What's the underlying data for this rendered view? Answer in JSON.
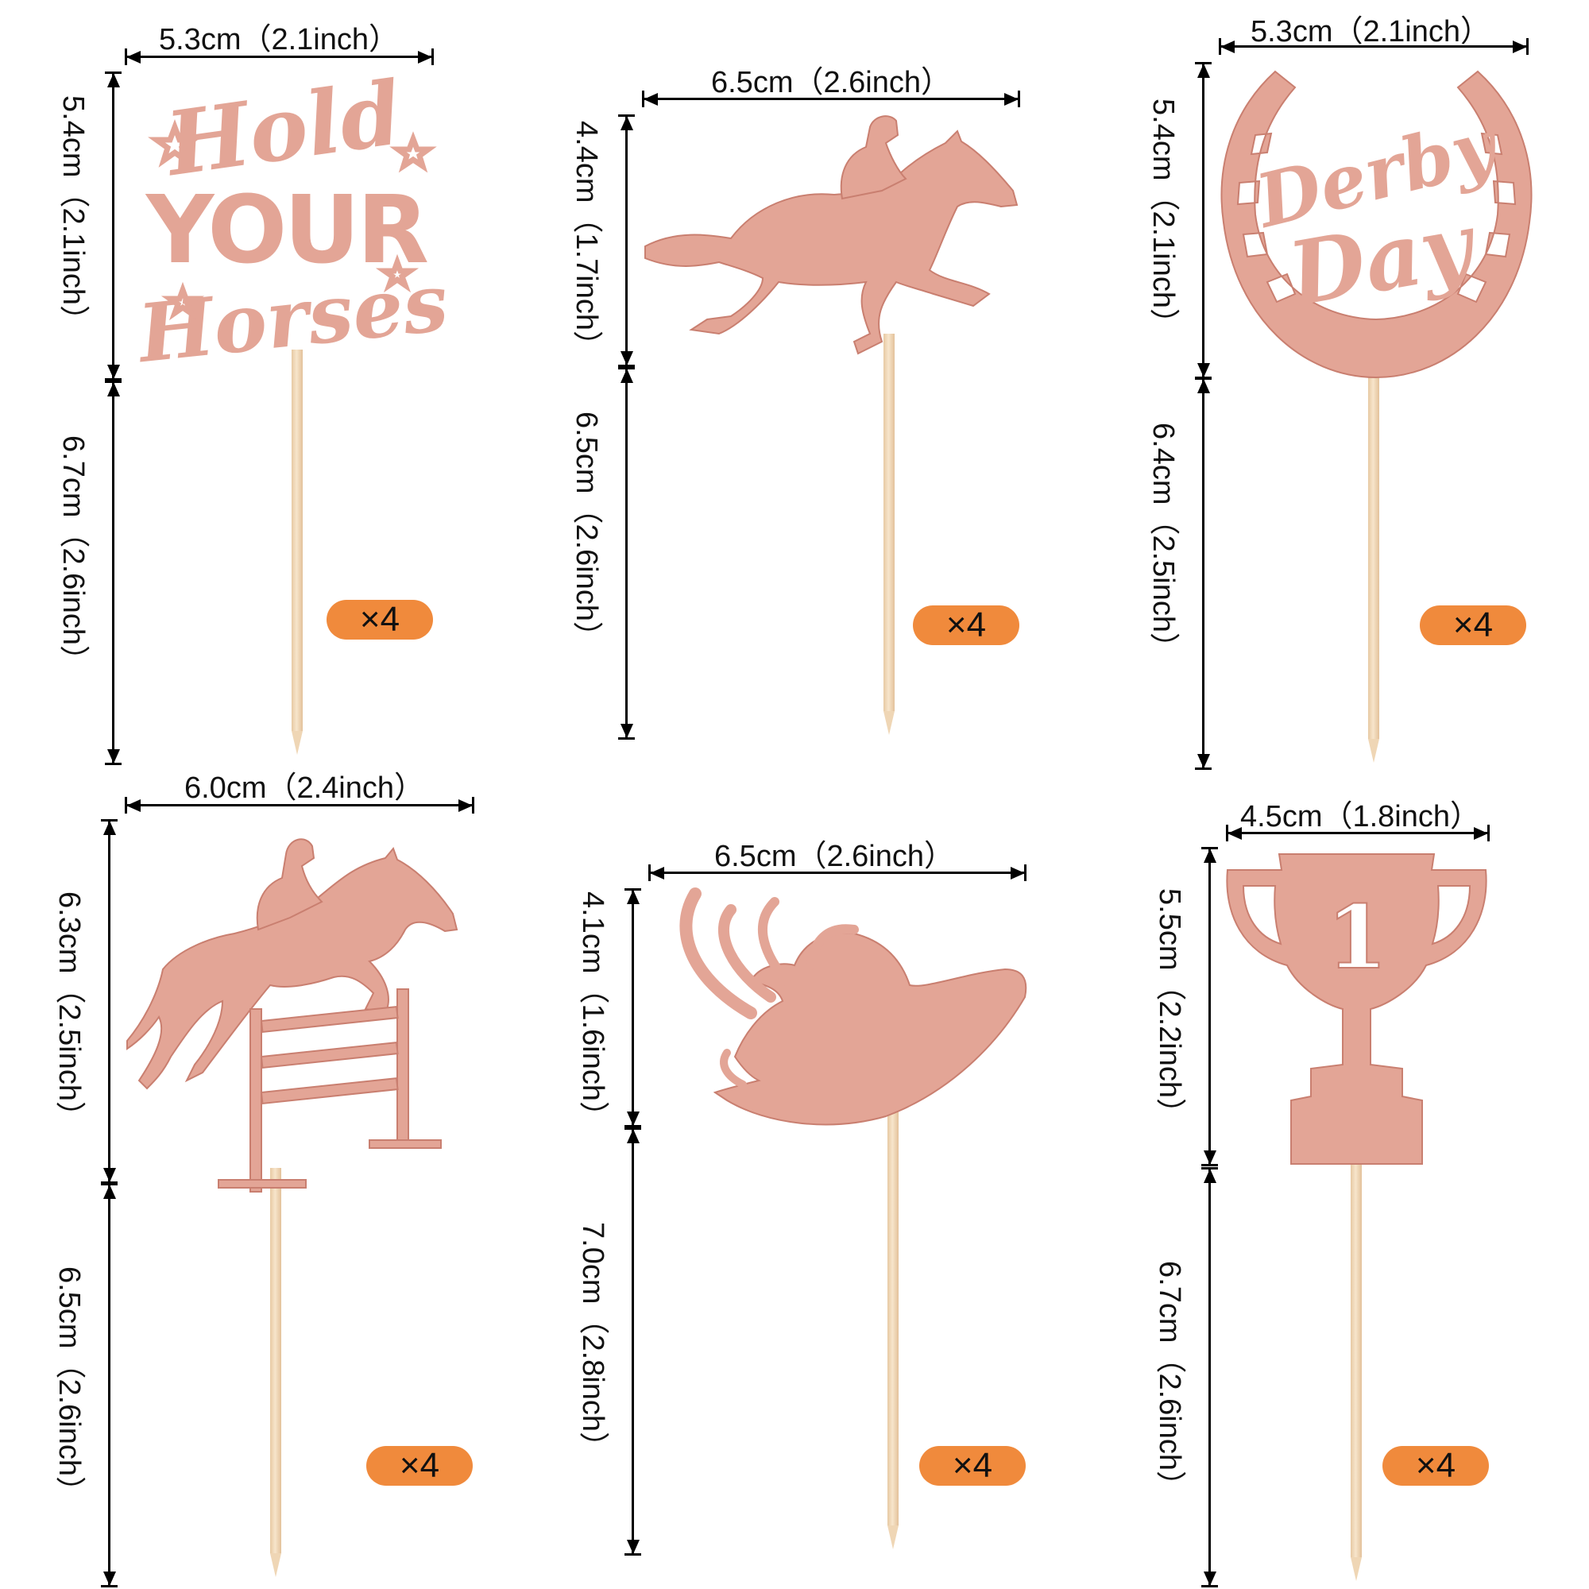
{
  "colors": {
    "glitter": "#e3a596",
    "glitter_dark": "#c97f70",
    "badge": "#f08a3c",
    "stick": "#efd6b5",
    "line": "#000000"
  },
  "toppers": [
    {
      "name": "hold-your-horses",
      "width_label": "5.3cm（2.1inch）",
      "height_label": "5.4cm（2.1inch）",
      "stick_label": "6.7cm（2.6inch）",
      "badge": "×4",
      "text_lines": [
        "Hold",
        "YOUR",
        "Horses"
      ]
    },
    {
      "name": "racing-horse",
      "width_label": "6.5cm（2.6inch）",
      "height_label": "4.4cm（1.7inch）",
      "stick_label": "6.5cm（2.6inch）",
      "badge": "×4",
      "icon": "racehorse-jockey-icon"
    },
    {
      "name": "derby-day",
      "width_label": "5.3cm（2.1inch）",
      "height_label": "5.4cm（2.1inch）",
      "stick_label": "6.4cm（2.5inch）",
      "badge": "×4",
      "text_lines": [
        "Derby",
        "Day"
      ],
      "icon": "horseshoe-icon"
    },
    {
      "name": "show-jumping",
      "width_label": "6.0cm（2.4inch）",
      "height_label": "6.3cm（2.5inch）",
      "stick_label": "6.5cm（2.6inch）",
      "badge": "×4",
      "icon": "jumping-horse-icon"
    },
    {
      "name": "derby-hat",
      "width_label": "6.5cm（2.6inch）",
      "height_label": "4.1cm（1.6inch）",
      "stick_label": "7.0cm（2.8inch）",
      "badge": "×4",
      "icon": "feathered-hat-icon"
    },
    {
      "name": "trophy",
      "width_label": "4.5cm（1.8inch）",
      "height_label": "5.5cm（2.2inch）",
      "stick_label": "6.7cm（2.6inch）",
      "badge": "×4",
      "trophy_number": "1",
      "icon": "trophy-icon"
    }
  ]
}
